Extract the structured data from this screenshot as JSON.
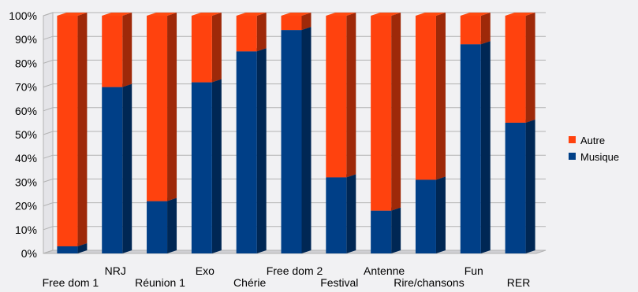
{
  "chart_data": {
    "type": "bar",
    "stacked": true,
    "three_d": true,
    "categories": [
      "Free dom 1",
      "NRJ",
      "Réunion 1",
      "Exo",
      "Chérie",
      "Free dom 2",
      "Festival",
      "Antenne",
      "Rire/chansons",
      "Fun",
      "RER"
    ],
    "series": [
      {
        "name": "Musique",
        "values": [
          3,
          70,
          22,
          72,
          85,
          94,
          32,
          18,
          31,
          88,
          55
        ],
        "color": "#003f87"
      },
      {
        "name": "Autre",
        "values": [
          97,
          30,
          78,
          28,
          15,
          6,
          68,
          82,
          69,
          12,
          45
        ],
        "color": "#ff420e"
      }
    ],
    "y_ticks": [
      "0%",
      "10%",
      "20%",
      "30%",
      "40%",
      "50%",
      "60%",
      "70%",
      "80%",
      "90%",
      "100%"
    ],
    "ylim": [
      0,
      100
    ],
    "legend_position": "right",
    "grid": true,
    "background": "#f1f1f3"
  }
}
